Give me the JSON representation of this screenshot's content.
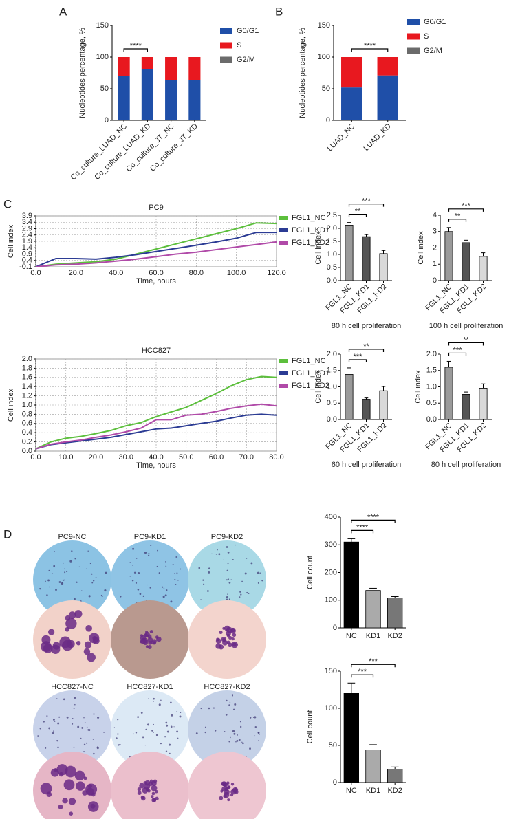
{
  "panel_labels": [
    "A",
    "B",
    "C",
    "D"
  ],
  "colony_panel": {
    "rows": [
      {
        "labels": [
          "PC9-NC",
          "PC9-KD1",
          "PC9-KD2"
        ]
      },
      {
        "labels": [
          "HCC827-NC",
          "HCC827-KD1",
          "HCC827-KD2"
        ]
      }
    ]
  },
  "chart_data": [
    {
      "type": "bar",
      "ylabel": "Nucleotides percentage, %",
      "categories": [
        "Co_culture_LUAD_NC",
        "Co_culture_LUAD_KD",
        "Co_culture_JT_NC",
        "Co_culture_JT_KD"
      ],
      "series": [
        {
          "name": "G0/G1",
          "color": "#1f4fa8",
          "values": [
            70,
            81,
            64,
            64
          ]
        },
        {
          "name": "S",
          "color": "#e8181f",
          "values": [
            30,
            19,
            36,
            36
          ]
        },
        {
          "name": "G2/M",
          "color": "#6b6b6b",
          "values": [
            0,
            0,
            0,
            0
          ]
        }
      ],
      "ylim": [
        0,
        150
      ],
      "yticks": [
        0,
        50,
        100,
        150
      ],
      "annotations": [
        {
          "text": "****",
          "between": [
            "Co_culture_LUAD_NC",
            "Co_culture_LUAD_KD"
          ]
        }
      ]
    },
    {
      "type": "bar",
      "ylabel": "Nucleotides percentage, %",
      "categories": [
        "LUAD_NC",
        "LUAD_KD"
      ],
      "series": [
        {
          "name": "G0/G1",
          "color": "#1f4fa8",
          "values": [
            52,
            71
          ]
        },
        {
          "name": "S",
          "color": "#e8181f",
          "values": [
            48,
            29
          ]
        },
        {
          "name": "G2/M",
          "color": "#6b6b6b",
          "values": [
            0,
            0
          ]
        }
      ],
      "ylim": [
        0,
        150
      ],
      "yticks": [
        0,
        50,
        100,
        150
      ],
      "annotations": [
        {
          "text": "****",
          "between": [
            "LUAD_NC",
            "LUAD_KD"
          ]
        }
      ]
    },
    {
      "type": "line",
      "title": "PC9",
      "xlabel": "Time, hours",
      "ylabel": "Cell index",
      "grid": true,
      "x": [
        0,
        10,
        20,
        30,
        40,
        50,
        60,
        70,
        80,
        90,
        100,
        110,
        120
      ],
      "series": [
        {
          "name": "FGL1_NC",
          "color": "#5cbf3c",
          "values": [
            -0.1,
            0.1,
            0.2,
            0.3,
            0.5,
            0.9,
            1.3,
            1.7,
            2.1,
            2.5,
            2.9,
            3.35,
            3.3
          ]
        },
        {
          "name": "FGL1_KD1",
          "color": "#2b3b94",
          "values": [
            -0.1,
            0.55,
            0.55,
            0.5,
            0.65,
            0.85,
            1.1,
            1.35,
            1.6,
            1.85,
            2.15,
            2.6,
            2.6
          ]
        },
        {
          "name": "FGL1_KD2",
          "color": "#b04aa8",
          "values": [
            -0.1,
            0.05,
            0.1,
            0.2,
            0.35,
            0.5,
            0.7,
            0.9,
            1.05,
            1.25,
            1.45,
            1.65,
            1.85
          ]
        }
      ],
      "xlim": [
        0,
        120
      ],
      "xticks": [
        {
          "value": 0,
          "label": "0.0"
        },
        {
          "value": 20,
          "label": "20.0"
        },
        {
          "value": 40,
          "label": "40.0"
        },
        {
          "value": 60,
          "label": "60.0"
        },
        {
          "value": 80,
          "label": "80.0"
        },
        {
          "value": 100,
          "label": "100.0"
        },
        {
          "value": 120,
          "label": "120.0"
        }
      ],
      "ylim": [
        -0.1,
        3.9
      ],
      "yticks": [
        -0.1,
        0.4,
        0.9,
        1.4,
        1.9,
        2.4,
        2.9,
        3.4,
        3.9
      ]
    },
    {
      "type": "line",
      "title": "HCC827",
      "xlabel": "Time, hours",
      "ylabel": "Cell index",
      "grid": true,
      "x": [
        0,
        5,
        10,
        15,
        20,
        25,
        30,
        35,
        40,
        45,
        50,
        55,
        60,
        65,
        70,
        75,
        80
      ],
      "series": [
        {
          "name": "FGL1_NC",
          "color": "#5cbf3c",
          "values": [
            0.05,
            0.2,
            0.28,
            0.32,
            0.38,
            0.45,
            0.55,
            0.62,
            0.75,
            0.85,
            0.95,
            1.1,
            1.25,
            1.42,
            1.55,
            1.62,
            1.6
          ]
        },
        {
          "name": "FGL1_KD1",
          "color": "#2b3b94",
          "values": [
            0.05,
            0.14,
            0.18,
            0.22,
            0.26,
            0.3,
            0.36,
            0.42,
            0.48,
            0.5,
            0.55,
            0.6,
            0.65,
            0.72,
            0.78,
            0.8,
            0.78
          ]
        },
        {
          "name": "FGL1_KD2",
          "color": "#b04aa8",
          "values": [
            0.05,
            0.15,
            0.2,
            0.24,
            0.3,
            0.35,
            0.42,
            0.5,
            0.68,
            0.68,
            0.78,
            0.8,
            0.86,
            0.93,
            0.98,
            1.02,
            0.98
          ]
        }
      ],
      "xlim": [
        0,
        80
      ],
      "xticks": [
        {
          "value": 0,
          "label": "0.0"
        },
        {
          "value": 10,
          "label": "10.0"
        },
        {
          "value": 20,
          "label": "20.0"
        },
        {
          "value": 30,
          "label": "30.0"
        },
        {
          "value": 40,
          "label": "40.0"
        },
        {
          "value": 50,
          "label": "50.0"
        },
        {
          "value": 60,
          "label": "60.0"
        },
        {
          "value": 70,
          "label": "70.0"
        },
        {
          "value": 80,
          "label": "80.0"
        }
      ],
      "ylim": [
        0,
        2.0
      ],
      "yticks": [
        {
          "value": 0,
          "label": "0.0"
        },
        0.2,
        0.4,
        0.6,
        0.8,
        {
          "value": 1,
          "label": "1.0"
        },
        1.2,
        1.4,
        1.6,
        1.8,
        {
          "value": 2,
          "label": "2.0"
        }
      ]
    },
    {
      "type": "bar",
      "ylabel": "Cell index",
      "xlabel": "80 h cell proliferation",
      "categories": [
        "FGL1_NC",
        "FGL1_KD1",
        "FGL1_KD2"
      ],
      "values": [
        2.12,
        1.68,
        1.03
      ],
      "errors": [
        0.1,
        0.08,
        0.12
      ],
      "colors": [
        "#9a9a9a",
        "#555555",
        "#d9d9d9"
      ],
      "ylim": [
        0,
        2.5
      ],
      "yticks": [
        {
          "value": 0,
          "label": "0.0"
        },
        0.5,
        {
          "value": 1,
          "label": "1.0"
        },
        1.5,
        {
          "value": 2,
          "label": "2.0"
        },
        2.5
      ],
      "annotations": [
        {
          "text": "**",
          "between": [
            "FGL1_NC",
            "FGL1_KD1"
          ]
        },
        {
          "text": "***",
          "between": [
            "FGL1_NC",
            "FGL1_KD2"
          ]
        }
      ]
    },
    {
      "type": "bar",
      "ylabel": "Cell index",
      "xlabel": "100 h cell proliferation",
      "categories": [
        "FGL1_NC",
        "FGL1_KD1",
        "FGL1_KD2"
      ],
      "values": [
        3.0,
        2.32,
        1.48
      ],
      "errors": [
        0.25,
        0.15,
        0.22
      ],
      "colors": [
        "#9a9a9a",
        "#555555",
        "#d9d9d9"
      ],
      "ylim": [
        0,
        4
      ],
      "yticks": [
        0,
        1,
        2,
        3,
        4
      ],
      "annotations": [
        {
          "text": "**",
          "between": [
            "FGL1_NC",
            "FGL1_KD1"
          ]
        },
        {
          "text": "***",
          "between": [
            "FGL1_NC",
            "FGL1_KD2"
          ]
        }
      ]
    },
    {
      "type": "bar",
      "ylabel": "Cell index",
      "xlabel": "60 h cell proliferation",
      "categories": [
        "FGL1_NC",
        "FGL1_KD1",
        "FGL1_KD2"
      ],
      "values": [
        1.38,
        0.62,
        0.88
      ],
      "errors": [
        0.2,
        0.04,
        0.13
      ],
      "colors": [
        "#9a9a9a",
        "#555555",
        "#d9d9d9"
      ],
      "ylim": [
        0,
        2.0
      ],
      "yticks": [
        {
          "value": 0,
          "label": "0.0"
        },
        0.5,
        {
          "value": 1,
          "label": "1.0"
        },
        1.5,
        {
          "value": 2,
          "label": "2.0"
        }
      ],
      "annotations": [
        {
          "text": "***",
          "between": [
            "FGL1_NC",
            "FGL1_KD1"
          ]
        },
        {
          "text": "**",
          "between": [
            "FGL1_NC",
            "FGL1_KD2"
          ]
        }
      ]
    },
    {
      "type": "bar",
      "ylabel": "Cell index",
      "xlabel": "80 h cell proliferation",
      "categories": [
        "FGL1_NC",
        "FGL1_KD1",
        "FGL1_KD2"
      ],
      "values": [
        1.6,
        0.77,
        0.96
      ],
      "errors": [
        0.18,
        0.07,
        0.13
      ],
      "colors": [
        "#9a9a9a",
        "#555555",
        "#d9d9d9"
      ],
      "ylim": [
        0,
        2.0
      ],
      "yticks": [
        {
          "value": 0,
          "label": "0.0"
        },
        0.5,
        {
          "value": 1,
          "label": "1.0"
        },
        1.5,
        {
          "value": 2,
          "label": "2.0"
        }
      ],
      "annotations": [
        {
          "text": "***",
          "between": [
            "FGL1_NC",
            "FGL1_KD1"
          ]
        },
        {
          "text": "**",
          "between": [
            "FGL1_NC",
            "FGL1_KD2"
          ]
        }
      ]
    },
    {
      "type": "bar",
      "ylabel": "Cell count",
      "categories": [
        "NC",
        "KD1",
        "KD2"
      ],
      "values": [
        310,
        135,
        108
      ],
      "errors": [
        12,
        8,
        5
      ],
      "colors": [
        "#000000",
        "#aaaaaa",
        "#777777"
      ],
      "ylim": [
        0,
        400
      ],
      "yticks": [
        0,
        100,
        200,
        300,
        400
      ],
      "annotations": [
        {
          "text": "****",
          "between": [
            "NC",
            "KD1"
          ]
        },
        {
          "text": "****",
          "between": [
            "NC",
            "KD2"
          ]
        }
      ]
    },
    {
      "type": "bar",
      "ylabel": "Cell count",
      "categories": [
        "NC",
        "KD1",
        "KD2"
      ],
      "values": [
        120,
        44,
        18
      ],
      "errors": [
        14,
        7,
        3
      ],
      "colors": [
        "#000000",
        "#aaaaaa",
        "#777777"
      ],
      "ylim": [
        0,
        150
      ],
      "yticks": [
        0,
        50,
        100,
        150
      ],
      "annotations": [
        {
          "text": "***",
          "between": [
            "NC",
            "KD1"
          ]
        },
        {
          "text": "***",
          "between": [
            "NC",
            "KD2"
          ]
        }
      ]
    }
  ]
}
